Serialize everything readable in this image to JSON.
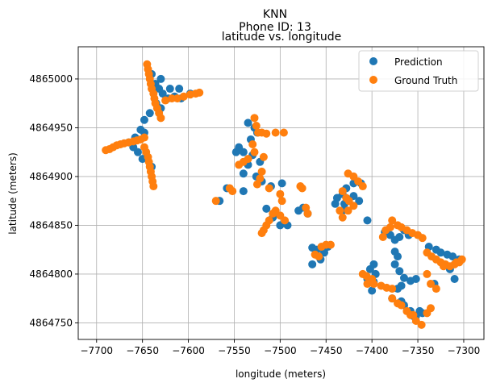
{
  "figure": {
    "suptitle": "KNN",
    "subtitle": "Phone ID: 13"
  },
  "chart_data": {
    "type": "scatter",
    "title": "latitude vs. longitude",
    "xlabel": "longitude (meters)",
    "ylabel": "latitude (meters)",
    "xlim": [
      -7720,
      -7278
    ],
    "ylim": [
      4864733,
      4865033
    ],
    "xticks": [
      -7700,
      -7650,
      -7600,
      -7550,
      -7500,
      -7450,
      -7400,
      -7350,
      -7300
    ],
    "yticks": [
      4864750,
      4864800,
      4864850,
      4864900,
      4864950,
      4865000
    ],
    "xtick_labels": [
      "−7700",
      "−7650",
      "−7600",
      "−7550",
      "−7500",
      "−7450",
      "−7400",
      "−7350",
      "−7300"
    ],
    "ytick_labels": [
      "4864750",
      "4864800",
      "4864850",
      "4864900",
      "4864950",
      "4865000"
    ],
    "grid": true,
    "legend_position": "top-right",
    "series": [
      {
        "name": "Prediction",
        "color": "#1f77b4",
        "points": [
          [
            -7640,
            4865005
          ],
          [
            -7636,
            4864995
          ],
          [
            -7632,
            4864990
          ],
          [
            -7628,
            4864985
          ],
          [
            -7622,
            4864980
          ],
          [
            -7615,
            4864982
          ],
          [
            -7608,
            4864980
          ],
          [
            -7598,
            4864985
          ],
          [
            -7610,
            4864990
          ],
          [
            -7630,
            4865000
          ],
          [
            -7620,
            4864990
          ],
          [
            -7635,
            4864975
          ],
          [
            -7642,
            4864965
          ],
          [
            -7648,
            4864958
          ],
          [
            -7652,
            4864948
          ],
          [
            -7658,
            4864940
          ],
          [
            -7665,
            4864935
          ],
          [
            -7660,
            4864930
          ],
          [
            -7655,
            4864925
          ],
          [
            -7650,
            4864918
          ],
          [
            -7645,
            4864920
          ],
          [
            -7640,
            4864910
          ],
          [
            -7648,
            4864945
          ],
          [
            -7630,
            4864970
          ],
          [
            -7535,
            4864955
          ],
          [
            -7528,
            4864950
          ],
          [
            -7532,
            4864938
          ],
          [
            -7525,
            4864945
          ],
          [
            -7540,
            4864925
          ],
          [
            -7545,
            4864930
          ],
          [
            -7548,
            4864925
          ],
          [
            -7530,
            4864922
          ],
          [
            -7522,
            4864915
          ],
          [
            -7535,
            4864912
          ],
          [
            -7540,
            4864903
          ],
          [
            -7526,
            4864900
          ],
          [
            -7520,
            4864895
          ],
          [
            -7510,
            4864890
          ],
          [
            -7498,
            4864893
          ],
          [
            -7558,
            4864888
          ],
          [
            -7566,
            4864875
          ],
          [
            -7540,
            4864885
          ],
          [
            -7515,
            4864867
          ],
          [
            -7505,
            4864862
          ],
          [
            -7508,
            4864858
          ],
          [
            -7500,
            4864850
          ],
          [
            -7492,
            4864850
          ],
          [
            -7480,
            4864865
          ],
          [
            -7475,
            4864868
          ],
          [
            -7470,
            4864862
          ],
          [
            -7420,
            4864893
          ],
          [
            -7412,
            4864893
          ],
          [
            -7428,
            4864888
          ],
          [
            -7432,
            4864882
          ],
          [
            -7438,
            4864878
          ],
          [
            -7420,
            4864880
          ],
          [
            -7414,
            4864875
          ],
          [
            -7430,
            4864872
          ],
          [
            -7440,
            4864872
          ],
          [
            -7432,
            4864865
          ],
          [
            -7405,
            4864855
          ],
          [
            -7465,
            4864827
          ],
          [
            -7460,
            4864825
          ],
          [
            -7456,
            4864815
          ],
          [
            -7465,
            4864810
          ],
          [
            -7452,
            4864822
          ],
          [
            -7448,
            4864828
          ],
          [
            -7386,
            4864843
          ],
          [
            -7380,
            4864840
          ],
          [
            -7375,
            4864835
          ],
          [
            -7370,
            4864838
          ],
          [
            -7365,
            4864845
          ],
          [
            -7360,
            4864840
          ],
          [
            -7375,
            4864823
          ],
          [
            -7372,
            4864818
          ],
          [
            -7375,
            4864810
          ],
          [
            -7370,
            4864803
          ],
          [
            -7365,
            4864796
          ],
          [
            -7368,
            4864788
          ],
          [
            -7372,
            4864785
          ],
          [
            -7378,
            4864775
          ],
          [
            -7368,
            4864772
          ],
          [
            -7365,
            4864768
          ],
          [
            -7358,
            4864762
          ],
          [
            -7352,
            4864757
          ],
          [
            -7348,
            4864762
          ],
          [
            -7355,
            4864757
          ],
          [
            -7345,
            4864760
          ],
          [
            -7338,
            4864828
          ],
          [
            -7330,
            4864825
          ],
          [
            -7325,
            4864822
          ],
          [
            -7318,
            4864820
          ],
          [
            -7312,
            4864818
          ],
          [
            -7305,
            4864815
          ],
          [
            -7322,
            4864810
          ],
          [
            -7315,
            4864805
          ],
          [
            -7310,
            4864795
          ],
          [
            -7352,
            4864795
          ],
          [
            -7358,
            4864793
          ],
          [
            -7332,
            4864790
          ],
          [
            -7398,
            4864810
          ],
          [
            -7402,
            4864805
          ],
          [
            -7396,
            4864800
          ],
          [
            -7398,
            4864792
          ],
          [
            -7400,
            4864783
          ],
          [
            -7405,
            4864795
          ]
        ]
      },
      {
        "name": "Ground Truth",
        "color": "#ff7f0e",
        "points": [
          [
            -7645,
            4865015
          ],
          [
            -7644,
            4865010
          ],
          [
            -7643,
            4865005
          ],
          [
            -7642,
            4865000
          ],
          [
            -7641,
            4864995
          ],
          [
            -7640,
            4864990
          ],
          [
            -7638,
            4864985
          ],
          [
            -7637,
            4864980
          ],
          [
            -7636,
            4864975
          ],
          [
            -7634,
            4864970
          ],
          [
            -7632,
            4864965
          ],
          [
            -7630,
            4864960
          ],
          [
            -7625,
            4864978
          ],
          [
            -7618,
            4864980
          ],
          [
            -7612,
            4864980
          ],
          [
            -7605,
            4864982
          ],
          [
            -7598,
            4864984
          ],
          [
            -7592,
            4864985
          ],
          [
            -7588,
            4864986
          ],
          [
            -7690,
            4864927
          ],
          [
            -7686,
            4864928
          ],
          [
            -7682,
            4864930
          ],
          [
            -7678,
            4864932
          ],
          [
            -7674,
            4864933
          ],
          [
            -7670,
            4864934
          ],
          [
            -7665,
            4864935
          ],
          [
            -7660,
            4864936
          ],
          [
            -7656,
            4864937
          ],
          [
            -7652,
            4864938
          ],
          [
            -7648,
            4864940
          ],
          [
            -7648,
            4864930
          ],
          [
            -7646,
            4864925
          ],
          [
            -7644,
            4864920
          ],
          [
            -7643,
            4864915
          ],
          [
            -7642,
            4864910
          ],
          [
            -7641,
            4864905
          ],
          [
            -7640,
            4864900
          ],
          [
            -7639,
            4864895
          ],
          [
            -7638,
            4864890
          ],
          [
            -7528,
            4864960
          ],
          [
            -7526,
            4864952
          ],
          [
            -7524,
            4864945
          ],
          [
            -7520,
            4864945
          ],
          [
            -7515,
            4864944
          ],
          [
            -7505,
            4864945
          ],
          [
            -7496,
            4864945
          ],
          [
            -7530,
            4864933
          ],
          [
            -7528,
            4864925
          ],
          [
            -7535,
            4864918
          ],
          [
            -7540,
            4864915
          ],
          [
            -7545,
            4864912
          ],
          [
            -7518,
            4864920
          ],
          [
            -7520,
            4864905
          ],
          [
            -7522,
            4864898
          ],
          [
            -7525,
            4864892
          ],
          [
            -7512,
            4864888
          ],
          [
            -7555,
            4864888
          ],
          [
            -7552,
            4864885
          ],
          [
            -7570,
            4864875
          ],
          [
            -7500,
            4864882
          ],
          [
            -7498,
            4864875
          ],
          [
            -7505,
            4864865
          ],
          [
            -7508,
            4864862
          ],
          [
            -7512,
            4864855
          ],
          [
            -7515,
            4864850
          ],
          [
            -7518,
            4864845
          ],
          [
            -7500,
            4864860
          ],
          [
            -7495,
            4864855
          ],
          [
            -7478,
            4864890
          ],
          [
            -7476,
            4864888
          ],
          [
            -7472,
            4864868
          ],
          [
            -7470,
            4864862
          ],
          [
            -7520,
            4864842
          ],
          [
            -7426,
            4864903
          ],
          [
            -7420,
            4864900
          ],
          [
            -7415,
            4864895
          ],
          [
            -7410,
            4864890
          ],
          [
            -7432,
            4864885
          ],
          [
            -7428,
            4864878
          ],
          [
            -7425,
            4864875
          ],
          [
            -7420,
            4864870
          ],
          [
            -7426,
            4864865
          ],
          [
            -7435,
            4864865
          ],
          [
            -7432,
            4864858
          ],
          [
            -7462,
            4864820
          ],
          [
            -7455,
            4864828
          ],
          [
            -7450,
            4864830
          ],
          [
            -7445,
            4864830
          ],
          [
            -7458,
            4864818
          ],
          [
            -7410,
            4864800
          ],
          [
            -7406,
            4864798
          ],
          [
            -7400,
            4864795
          ],
          [
            -7405,
            4864790
          ],
          [
            -7398,
            4864790
          ],
          [
            -7390,
            4864788
          ],
          [
            -7384,
            4864786
          ],
          [
            -7378,
            4864785
          ],
          [
            -7388,
            4864838
          ],
          [
            -7385,
            4864845
          ],
          [
            -7380,
            4864848
          ],
          [
            -7378,
            4864855
          ],
          [
            -7372,
            4864850
          ],
          [
            -7368,
            4864848
          ],
          [
            -7362,
            4864845
          ],
          [
            -7356,
            4864842
          ],
          [
            -7350,
            4864840
          ],
          [
            -7345,
            4864837
          ],
          [
            -7378,
            4864775
          ],
          [
            -7372,
            4864770
          ],
          [
            -7368,
            4864768
          ],
          [
            -7362,
            4864762
          ],
          [
            -7358,
            4864758
          ],
          [
            -7352,
            4864752
          ],
          [
            -7346,
            4864748
          ],
          [
            -7340,
            4864760
          ],
          [
            -7336,
            4864765
          ],
          [
            -7355,
            4864758
          ],
          [
            -7340,
            4864822
          ],
          [
            -7335,
            4864818
          ],
          [
            -7330,
            4864815
          ],
          [
            -7325,
            4864812
          ],
          [
            -7320,
            4864810
          ],
          [
            -7315,
            4864808
          ],
          [
            -7310,
            4864810
          ],
          [
            -7305,
            4864812
          ],
          [
            -7302,
            4864815
          ],
          [
            -7308,
            4864812
          ],
          [
            -7322,
            4864808
          ],
          [
            -7340,
            4864800
          ],
          [
            -7336,
            4864790
          ],
          [
            -7330,
            4864785
          ]
        ]
      }
    ]
  }
}
